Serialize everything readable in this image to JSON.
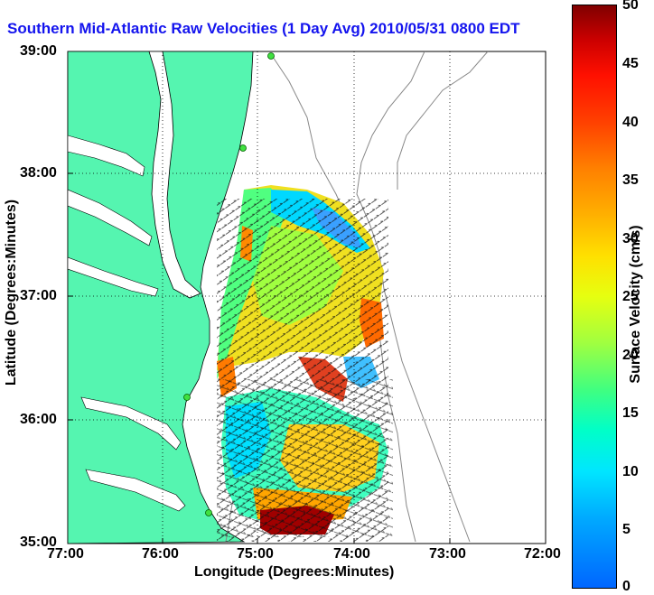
{
  "title": "Southern Mid-Atlantic Raw Velocities (1 Day Avg) 2010/05/31 0800 EDT",
  "x_axis": {
    "label": "Longitude (Degrees:Minutes)",
    "ticks": [
      "77:00",
      "76:00",
      "75:00",
      "74:00",
      "73:00",
      "72:00"
    ]
  },
  "y_axis": {
    "label": "Latitude (Degrees:Minutes)",
    "ticks": [
      "39:00",
      "38:00",
      "37:00",
      "36:00",
      "35:00"
    ]
  },
  "colorbar": {
    "label": "Surface Velocity (cm/s)",
    "ticks": [
      "50",
      "45",
      "40",
      "35",
      "30",
      "25",
      "20",
      "15",
      "10",
      "5",
      "0"
    ]
  },
  "colors": {
    "land": "#55f5b0",
    "title": "#1414ee",
    "contour": "#888888"
  }
}
